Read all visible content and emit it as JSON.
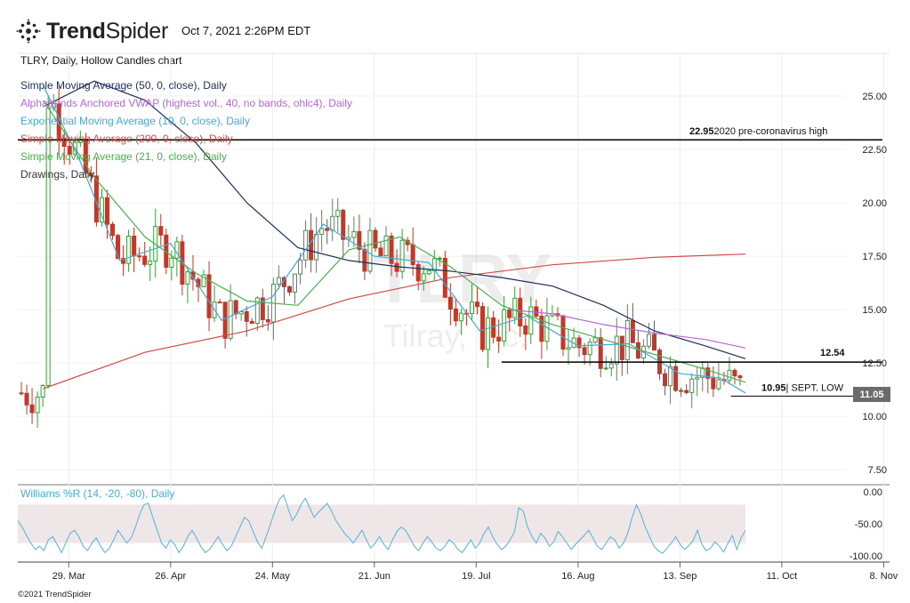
{
  "brand": {
    "name_bold": "Trend",
    "name_light": "Spider"
  },
  "timestamp": "Oct 7, 2021 2:26PM EDT",
  "chart_title": "TLRY, Daily, Hollow Candles chart",
  "watermark": {
    "ticker": "TLRY",
    "name": "Tilray, Inc."
  },
  "legend": [
    {
      "label": "Simple Moving Average (50, 0, close), Daily",
      "color": "#1f2f5a"
    },
    {
      "label": "Alphatrends Anchored VWAP (highest vol., 40, no bands, ohlc4), Daily",
      "color": "#b766d9"
    },
    {
      "label": "Exponential Moving Average (10, 0, close), Daily",
      "color": "#44a9d6"
    },
    {
      "label": "Simple Moving Average (200, 0, close), Daily",
      "color": "#d24a48"
    },
    {
      "label": "Simple Moving Average (21, 0, close), Daily",
      "color": "#4caf50"
    },
    {
      "label": "Drawings, Daily",
      "color": "#333333"
    }
  ],
  "footer": "©2021 TrendSpider",
  "chart_data": {
    "type": "line",
    "price_axis": {
      "ticks": [
        25.0,
        22.5,
        20.0,
        17.5,
        15.0,
        12.5,
        10.0,
        7.5
      ],
      "labels": [
        "25.00",
        "22.50",
        "20.00",
        "17.50",
        "15.00",
        "12.50",
        "10.00",
        "7.50"
      ],
      "range": [
        6.8,
        27.0
      ]
    },
    "x_axis": {
      "labels": [
        "29. Mar",
        "26. Apr",
        "24. May",
        "21. Jun",
        "19. Jul",
        "16. Aug",
        "13. Sep",
        "11. Oct",
        "8. Nov"
      ]
    },
    "last_price": {
      "value": 11.05,
      "label": "11.05"
    },
    "annotations": [
      {
        "value_label": "22.95",
        "text": "2020 pre-coronavirus high",
        "price": 22.95
      },
      {
        "value_label": "12.54",
        "text": "",
        "price": 12.54
      },
      {
        "value_label": "10.95",
        "text": "| SEPT. LOW",
        "price": 10.95
      }
    ],
    "series": [
      {
        "name": "Simple Moving Average (200, 0, close), Daily",
        "color": "#d24a48",
        "points": [
          [
            "2021-03-22",
            11.3
          ],
          [
            "2021-04-19",
            13.0
          ],
          [
            "2021-05-17",
            14.0
          ],
          [
            "2021-06-14",
            15.5
          ],
          [
            "2021-07-12",
            16.5
          ],
          [
            "2021-08-09",
            17.1
          ],
          [
            "2021-09-06",
            17.45
          ],
          [
            "2021-10-01",
            17.6
          ]
        ]
      },
      {
        "name": "Simple Moving Average (50, 0, close), Daily",
        "color": "#1f2f5a",
        "points": [
          [
            "2021-03-22",
            24.5
          ],
          [
            "2021-04-05",
            25.7
          ],
          [
            "2021-04-19",
            24.8
          ],
          [
            "2021-05-03",
            22.8
          ],
          [
            "2021-05-17",
            20.0
          ],
          [
            "2021-05-31",
            17.9
          ],
          [
            "2021-06-14",
            17.3
          ],
          [
            "2021-06-28",
            17.0
          ],
          [
            "2021-07-12",
            16.8
          ],
          [
            "2021-07-26",
            16.5
          ],
          [
            "2021-08-09",
            16.1
          ],
          [
            "2021-08-23",
            15.2
          ],
          [
            "2021-09-06",
            14.0
          ],
          [
            "2021-09-20",
            13.3
          ],
          [
            "2021-10-01",
            12.7
          ]
        ]
      },
      {
        "name": "Alphatrends Anchored VWAP (highest vol., 40, no bands, ohlc4), Daily",
        "color": "#b766d9",
        "points": [
          [
            "2021-07-28",
            15.0
          ],
          [
            "2021-08-09",
            14.8
          ],
          [
            "2021-08-23",
            14.3
          ],
          [
            "2021-09-06",
            13.9
          ],
          [
            "2021-09-20",
            13.6
          ],
          [
            "2021-10-01",
            13.2
          ]
        ]
      },
      {
        "name": "Exponential Moving Average (10, 0, close), Daily",
        "color": "#44a9d6",
        "points": [
          [
            "2021-03-22",
            25.5
          ],
          [
            "2021-04-01",
            22.0
          ],
          [
            "2021-04-12",
            17.3
          ],
          [
            "2021-04-26",
            18.1
          ],
          [
            "2021-05-10",
            14.5
          ],
          [
            "2021-05-24",
            15.6
          ],
          [
            "2021-06-07",
            19.0
          ],
          [
            "2021-06-21",
            17.5
          ],
          [
            "2021-07-06",
            17.2
          ],
          [
            "2021-07-20",
            14.0
          ],
          [
            "2021-08-02",
            14.7
          ],
          [
            "2021-08-16",
            13.3
          ],
          [
            "2021-08-30",
            13.4
          ],
          [
            "2021-09-13",
            12.0
          ],
          [
            "2021-09-24",
            11.8
          ],
          [
            "2021-10-01",
            11.1
          ]
        ]
      },
      {
        "name": "Simple Moving Average (21, 0, close), Daily",
        "color": "#4caf50",
        "points": [
          [
            "2021-03-22",
            24.8
          ],
          [
            "2021-04-05",
            21.2
          ],
          [
            "2021-04-19",
            18.4
          ],
          [
            "2021-05-03",
            16.7
          ],
          [
            "2021-05-17",
            15.4
          ],
          [
            "2021-05-31",
            15.2
          ],
          [
            "2021-06-14",
            17.8
          ],
          [
            "2021-06-28",
            18.4
          ],
          [
            "2021-07-12",
            17.0
          ],
          [
            "2021-07-26",
            15.2
          ],
          [
            "2021-08-09",
            14.3
          ],
          [
            "2021-08-23",
            13.6
          ],
          [
            "2021-09-06",
            12.9
          ],
          [
            "2021-09-20",
            12.2
          ],
          [
            "2021-10-01",
            11.6
          ]
        ]
      }
    ],
    "williams_r": {
      "name": "Williams %R (14, -20, -80), Daily",
      "color": "#4fb3dc",
      "ticks": [
        0,
        -50,
        -100
      ],
      "labels": [
        "0.00",
        "-50.00",
        "-100.00"
      ],
      "band": [
        -20,
        -80
      ],
      "values": [
        -45,
        -55,
        -68,
        -80,
        -90,
        -85,
        -92,
        -75,
        -70,
        -82,
        -95,
        -80,
        -65,
        -60,
        -70,
        -85,
        -92,
        -80,
        -72,
        -85,
        -95,
        -88,
        -75,
        -60,
        -70,
        -80,
        -72,
        -55,
        -35,
        -20,
        -18,
        -40,
        -60,
        -80,
        -88,
        -75,
        -82,
        -95,
        -85,
        -70,
        -60,
        -72,
        -85,
        -95,
        -90,
        -80,
        -70,
        -82,
        -92,
        -85,
        -70,
        -55,
        -40,
        -45,
        -62,
        -78,
        -88,
        -70,
        -50,
        -30,
        -12,
        -5,
        -25,
        -45,
        -35,
        -20,
        -10,
        -25,
        -40,
        -32,
        -25,
        -18,
        -30,
        -45,
        -55,
        -65,
        -72,
        -80,
        -70,
        -60,
        -75,
        -88,
        -80,
        -70,
        -82,
        -90,
        -75,
        -62,
        -55,
        -60,
        -72,
        -85,
        -92,
        -80,
        -70,
        -78,
        -88,
        -92,
        -85,
        -75,
        -80,
        -90,
        -95,
        -85,
        -75,
        -88,
        -80,
        -65,
        -55,
        -70,
        -82,
        -90,
        -85,
        -75,
        -62,
        -25,
        -30,
        -55,
        -70,
        -80,
        -65,
        -72,
        -85,
        -78,
        -62,
        -70,
        -80,
        -90,
        -82,
        -75,
        -68,
        -60,
        -72,
        -85,
        -90,
        -80,
        -70,
        -75,
        -88,
        -80,
        -65,
        -40,
        -20,
        -35,
        -55,
        -70,
        -85,
        -92,
        -96,
        -88,
        -80,
        -70,
        -82,
        -90,
        -84,
        -76,
        -60,
        -82,
        -92,
        -88,
        -78,
        -85,
        -94,
        -80,
        -68,
        -90,
        -72,
        -60
      ]
    }
  }
}
